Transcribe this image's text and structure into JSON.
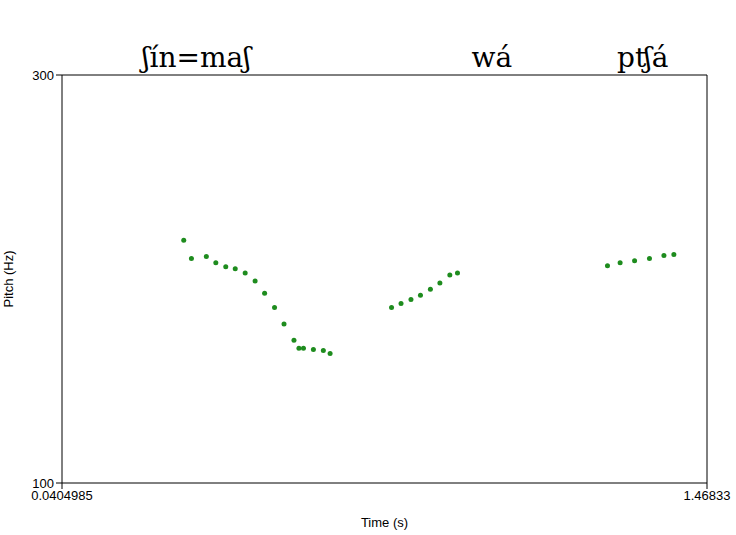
{
  "chart_data": {
    "type": "scatter",
    "x_label": "Time (s)",
    "y_label": "Pitch (Hz)",
    "xlim": [
      0.0404985,
      1.46833
    ],
    "xticks": [
      0.0404985,
      1.46833
    ],
    "ylim": [
      100,
      300
    ],
    "yticks": [
      100,
      300
    ],
    "grid": false,
    "color": "#1e8c1e",
    "marker": "circle",
    "annotations": [
      {
        "text": "ʃín=maʃ",
        "x": 0.338
      },
      {
        "text": "wá",
        "x": 0.992
      },
      {
        "text": "pʧá",
        "x": 1.326
      }
    ],
    "x": [
      0.31,
      0.327,
      0.36,
      0.381,
      0.403,
      0.424,
      0.446,
      0.468,
      0.489,
      0.511,
      0.532,
      0.554,
      0.565,
      0.575,
      0.597,
      0.619,
      0.634,
      0.77,
      0.791,
      0.813,
      0.834,
      0.856,
      0.877,
      0.899,
      0.916,
      1.248,
      1.276,
      1.308,
      1.341,
      1.373,
      1.395
    ],
    "values": [
      219,
      210,
      211,
      208,
      206,
      205,
      203,
      199,
      193,
      186,
      178,
      170,
      166,
      166,
      165.5,
      165,
      163.5,
      186,
      188,
      190,
      192,
      195,
      198,
      202,
      203,
      206.5,
      208,
      209,
      210,
      211.5,
      212
    ]
  }
}
